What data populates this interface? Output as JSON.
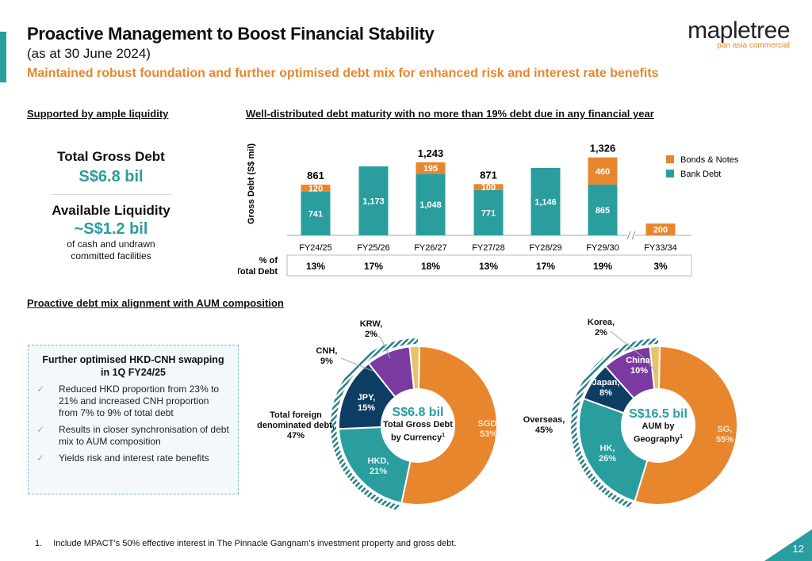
{
  "header": {
    "title": "Proactive Management to Boost Financial Stability",
    "subtitle": "(as at 30 June 2024)",
    "tagline": "Maintained robust foundation and further optimised debt mix for enhanced risk and interest rate benefits",
    "logo_word": "mapletree",
    "logo_sub": "pan asia commercial"
  },
  "liquidity": {
    "section": "Supported by ample liquidity",
    "debt_label": "Total Gross Debt",
    "debt_value": "S$6.8 bil",
    "liq_label": "Available Liquidity",
    "liq_value": "~S$1.2 bil",
    "liq_note1": "of cash and undrawn",
    "liq_note2": "committed facilities"
  },
  "colors": {
    "teal": "#2a9d9f",
    "orange": "#e8862e",
    "navy": "#0e3d64",
    "purple": "#7a3aa0",
    "lightgold": "#e8c36a"
  },
  "chart_data": [
    {
      "type": "bar",
      "stacked": true,
      "title": "Well-distributed debt maturity with no more than 19% debt due in any financial year",
      "ylabel": "Gross Debt (S$ mil)",
      "categories": [
        "FY24/25",
        "FY25/26",
        "FY26/27",
        "FY27/28",
        "FY28/29",
        "FY29/30",
        "FY33/34"
      ],
      "series": [
        {
          "name": "Bank Debt",
          "color": "#2a9d9f",
          "values": [
            741,
            1173,
            1048,
            771,
            1146,
            865,
            0
          ]
        },
        {
          "name": "Bonds & Notes",
          "color": "#e8862e",
          "values": [
            120,
            0,
            195,
            100,
            0,
            460,
            200
          ]
        }
      ],
      "totals": [
        "861",
        "",
        "1,243",
        "871",
        "",
        "1,326",
        ""
      ],
      "axis_break_after": "FY29/30",
      "legend": "top-right",
      "pct_row_label1": "% of",
      "pct_row_label2": "Total Debt",
      "pct_of_total": [
        "13%",
        "17%",
        "18%",
        "13%",
        "17%",
        "19%",
        "3%"
      ]
    },
    {
      "type": "pie",
      "donut": true,
      "center_value": "S$6.8 bil",
      "center_label1": "Total Gross Debt",
      "center_label2": "by Currency",
      "center_sup": "1",
      "slices": [
        {
          "label": "SGD",
          "value": 53,
          "text": "53%",
          "color": "#e8862e"
        },
        {
          "label": "HKD",
          "value": 21,
          "text": "21%",
          "color": "#2a9d9f"
        },
        {
          "label": "JPY",
          "value": 15,
          "text": "15%",
          "color": "#0e3d64"
        },
        {
          "label": "CNH",
          "value": 9,
          "text": "9%",
          "color": "#7a3aa0"
        },
        {
          "label": "KRW",
          "value": 2,
          "text": "2%",
          "color": "#e8c36a"
        }
      ],
      "group_label1": "Total foreign",
      "group_label2": "denominated debt,",
      "group_value": "47%"
    },
    {
      "type": "pie",
      "donut": true,
      "center_value": "S$16.5 bil",
      "center_label1": "AUM by",
      "center_label2": "Geography",
      "center_sup": "1",
      "slices": [
        {
          "label": "SG",
          "value": 55,
          "text": "55%",
          "color": "#e8862e"
        },
        {
          "label": "HK",
          "value": 26,
          "text": "26%",
          "color": "#2a9d9f"
        },
        {
          "label": "Japan",
          "value": 8,
          "text": "8%",
          "color": "#0e3d64"
        },
        {
          "label": "China",
          "value": 10,
          "text": "10%",
          "color": "#7a3aa0"
        },
        {
          "label": "Korea",
          "value": 2,
          "text": "2%",
          "color": "#e8c36a"
        }
      ],
      "group_label1": "Overseas,",
      "group_value": "45%"
    }
  ],
  "mix": {
    "section": "Proactive debt mix alignment with AUM composition",
    "callout_head1": "Further optimised HKD-CNH swapping",
    "callout_head2": "in 1Q FY24/25",
    "check": "✓",
    "bullets": [
      "Reduced HKD proportion from 23% to 21% and increased CNH proportion from 7% to 9% of total debt",
      "Results in closer synchronisation of debt mix to AUM composition",
      "Yields risk and interest rate benefits"
    ]
  },
  "footnote": {
    "num": "1.",
    "text": "Include MPACT’s 50% effective interest in The Pinnacle Gangnam’s investment property and gross debt."
  },
  "page_number": "12"
}
